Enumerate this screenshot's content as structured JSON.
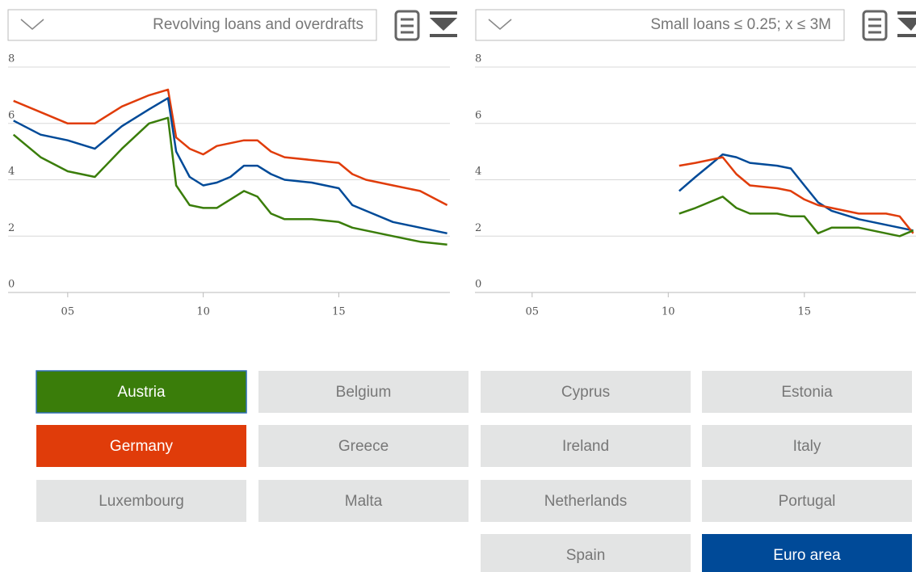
{
  "chart_data": [
    {
      "type": "line",
      "title": "Revolving loans and overdrafts",
      "x": [
        2003,
        2004,
        2005,
        2006,
        2007,
        2008,
        2008.7,
        2009,
        2009.5,
        2010,
        2010.5,
        2011,
        2011.5,
        2012,
        2012.5,
        2013,
        2014,
        2015,
        2015.5,
        2016,
        2017,
        2018,
        2019
      ],
      "series": [
        {
          "color": "#e03c0a",
          "values": [
            6.8,
            6.4,
            6.0,
            6.0,
            6.6,
            7.0,
            7.2,
            5.5,
            5.1,
            4.9,
            5.2,
            5.3,
            5.4,
            5.4,
            5.0,
            4.8,
            4.7,
            4.6,
            4.2,
            4.0,
            3.8,
            3.6,
            3.1
          ]
        },
        {
          "color": "#004a98",
          "values": [
            6.1,
            5.6,
            5.4,
            5.1,
            5.9,
            6.5,
            6.9,
            5.0,
            4.1,
            3.8,
            3.9,
            4.1,
            4.5,
            4.5,
            4.2,
            4.0,
            3.9,
            3.7,
            3.1,
            2.9,
            2.5,
            2.3,
            2.1
          ]
        },
        {
          "color": "#3a7d0a",
          "values": [
            5.6,
            4.8,
            4.3,
            4.1,
            5.1,
            6.0,
            6.2,
            3.8,
            3.1,
            3.0,
            3.0,
            3.3,
            3.6,
            3.4,
            2.8,
            2.6,
            2.6,
            2.5,
            2.3,
            2.2,
            2.0,
            1.8,
            1.7
          ]
        }
      ],
      "xlim": [
        2002.8,
        2019.1
      ],
      "ylim": [
        0,
        8
      ],
      "yticks": [
        0,
        2,
        4,
        6,
        8
      ],
      "xticks": [
        {
          "value": 2005,
          "label": "05"
        },
        {
          "value": 2010,
          "label": "10"
        },
        {
          "value": 2015,
          "label": "15"
        }
      ],
      "grid": true
    },
    {
      "type": "line",
      "title": "Small loans ≤ 0.25; x ≤ 3M",
      "x": [
        2010.4,
        2011,
        2011.5,
        2012,
        2012.5,
        2013,
        2014,
        2014.5,
        2015,
        2015.5,
        2016,
        2017,
        2018,
        2018.5,
        2019
      ],
      "series": [
        {
          "color": "#004a98",
          "values": [
            3.6,
            4.1,
            4.5,
            4.9,
            4.8,
            4.6,
            4.5,
            4.4,
            3.8,
            3.2,
            2.9,
            2.6,
            2.4,
            2.3,
            2.2
          ]
        },
        {
          "color": "#e03c0a",
          "values": [
            4.5,
            4.6,
            4.7,
            4.8,
            4.2,
            3.8,
            3.7,
            3.6,
            3.3,
            3.1,
            3.0,
            2.8,
            2.8,
            2.7,
            2.1
          ]
        },
        {
          "color": "#3a7d0a",
          "values": [
            2.8,
            3.0,
            3.2,
            3.4,
            3.0,
            2.8,
            2.8,
            2.7,
            2.7,
            2.1,
            2.3,
            2.3,
            2.1,
            2.0,
            2.2
          ]
        }
      ],
      "xlim": [
        2002.9,
        2019.1
      ],
      "ylim": [
        0,
        8
      ],
      "yticks": [
        0,
        2,
        4,
        6,
        8
      ],
      "xticks": [
        {
          "value": 2005,
          "label": "05"
        },
        {
          "value": 2010,
          "label": "10"
        },
        {
          "value": 2015,
          "label": "15"
        }
      ],
      "grid": true
    }
  ],
  "buttons": [
    {
      "text": "Austria",
      "color": "#3a7d0a"
    },
    {
      "text": "Belgium"
    },
    {
      "text": "Cyprus"
    },
    {
      "text": "Estonia"
    },
    {
      "text": "Germany",
      "color": "#e03c0a"
    },
    {
      "text": "Greece"
    },
    {
      "text": "Ireland"
    },
    {
      "text": "Italy"
    },
    {
      "text": "Luxembourg"
    },
    {
      "text": "Malta"
    },
    {
      "text": "Netherlands"
    },
    {
      "text": "Portugal"
    },
    {
      "text": "Spain"
    },
    {
      "text": "Euro area",
      "color": "#004a98"
    }
  ]
}
